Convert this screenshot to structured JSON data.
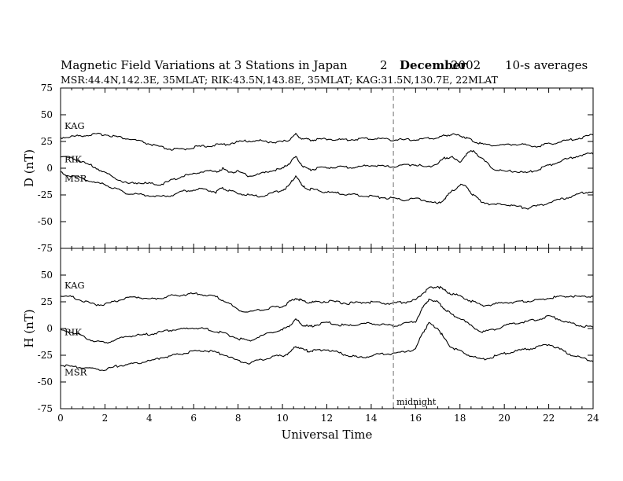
{
  "header": {
    "title": "Magnetic Field Variations at 3 Stations in Japan",
    "day": "2",
    "month": "December",
    "year": "2002",
    "averaging": "10-s averages",
    "subtitle": "MSR:44.4N,142.3E, 35MLAT;  RIK:43.5N,143.8E, 35MLAT;  KAG:31.5N,130.7E, 22MLAT"
  },
  "colors": {
    "trace": "#000000",
    "midline": "#999999",
    "frame": "#000000"
  },
  "chart_data": [
    {
      "type": "line",
      "ylabel": "D (nT)",
      "xlabel": "",
      "xlim": [
        0,
        24
      ],
      "ylim": [
        -75,
        75
      ],
      "yticks": [
        -75,
        -50,
        -25,
        0,
        25,
        50,
        75
      ],
      "xticks": [
        0,
        2,
        4,
        6,
        8,
        10,
        12,
        14,
        16,
        18,
        20,
        22,
        24
      ],
      "grid": false,
      "series": [
        {
          "name": "KAG",
          "x": [
            0,
            0.5,
            1,
            1.5,
            2,
            2.5,
            3,
            3.5,
            4,
            4.5,
            5,
            5.5,
            6,
            6.5,
            7,
            7.5,
            8,
            8.5,
            9,
            9.5,
            10,
            10.3,
            10.6,
            10.9,
            11.2,
            11.5,
            12,
            12.5,
            13,
            13.5,
            14,
            14.5,
            15,
            15.5,
            16,
            16.5,
            17,
            17.3,
            17.6,
            18,
            18.3,
            18.6,
            19,
            19.5,
            20,
            20.5,
            21,
            21.5,
            22,
            22.5,
            23,
            23.5,
            24
          ],
          "y": [
            28,
            29,
            30,
            31,
            31,
            29,
            27,
            25,
            22,
            19,
            17,
            17,
            19,
            20,
            21,
            22,
            24,
            25,
            25,
            24,
            24,
            26,
            31,
            27,
            26,
            26,
            27,
            26,
            26,
            27,
            27,
            27,
            26,
            26,
            26,
            27,
            28,
            30,
            31,
            30,
            28,
            25,
            22,
            21,
            21,
            22,
            21,
            20,
            22,
            24,
            26,
            28,
            31
          ]
        },
        {
          "name": "RIK",
          "x": [
            0,
            0.5,
            1,
            1.5,
            2,
            2.5,
            3,
            3.5,
            4,
            4.5,
            5,
            5.5,
            6,
            6.5,
            7,
            7.3,
            7.6,
            8,
            8.5,
            9,
            9.5,
            10,
            10.3,
            10.6,
            10.9,
            11.2,
            11.5,
            12,
            12.5,
            13,
            13.5,
            14,
            14.5,
            15,
            15.5,
            16,
            16.5,
            17,
            17.3,
            17.6,
            18,
            18.3,
            18.6,
            19,
            19.5,
            20,
            20.5,
            21,
            21.5,
            22,
            22.5,
            23,
            23.5,
            24
          ],
          "y": [
            10,
            9,
            5,
            1,
            -5,
            -10,
            -15,
            -14,
            -15,
            -16,
            -12,
            -8,
            -6,
            -3,
            -4,
            -1,
            -4,
            -4,
            -8,
            -6,
            -3,
            -1,
            4,
            10,
            2,
            -2,
            -1,
            0,
            1,
            0,
            1,
            2,
            1,
            1,
            2,
            3,
            0,
            4,
            9,
            10,
            5,
            13,
            16,
            8,
            -1,
            -4,
            -3,
            -5,
            -2,
            2,
            6,
            9,
            12,
            13
          ]
        },
        {
          "name": "MSR",
          "x": [
            0,
            0.5,
            1,
            1.5,
            2,
            2.5,
            3,
            3.5,
            4,
            4.5,
            5,
            5.5,
            6,
            6.5,
            7,
            7.3,
            7.6,
            8,
            8.5,
            9,
            9.5,
            10,
            10.3,
            10.6,
            10.9,
            11.2,
            11.5,
            12,
            12.5,
            13,
            13.5,
            14,
            14.5,
            15,
            15.5,
            16,
            16.5,
            17,
            17.3,
            17.6,
            18,
            18.3,
            18.6,
            19,
            19.5,
            20,
            20.5,
            21,
            21.5,
            22,
            22.5,
            23,
            23.5,
            24
          ],
          "y": [
            -5,
            -8,
            -10,
            -14,
            -16,
            -20,
            -24,
            -25,
            -26,
            -27,
            -26,
            -22,
            -21,
            -20,
            -23,
            -19,
            -22,
            -24,
            -26,
            -27,
            -24,
            -21,
            -17,
            -7,
            -18,
            -20,
            -21,
            -23,
            -24,
            -25,
            -26,
            -27,
            -28,
            -29,
            -30,
            -29,
            -31,
            -34,
            -29,
            -23,
            -16,
            -18,
            -26,
            -32,
            -35,
            -34,
            -36,
            -38,
            -36,
            -33,
            -30,
            -27,
            -24,
            -22
          ]
        }
      ]
    },
    {
      "type": "line",
      "ylabel": "H (nT)",
      "xlabel": "Universal Time",
      "xlim": [
        0,
        24
      ],
      "ylim": [
        -75,
        75
      ],
      "yticks": [
        -75,
        -50,
        -25,
        0,
        25,
        50,
        75
      ],
      "xticks": [
        0,
        2,
        4,
        6,
        8,
        10,
        12,
        14,
        16,
        18,
        20,
        22,
        24
      ],
      "grid": false,
      "annotation": {
        "x": 15,
        "label": "midnight"
      },
      "series": [
        {
          "name": "KAG",
          "x": [
            0,
            0.5,
            1,
            1.5,
            2,
            2.5,
            3,
            3.5,
            4,
            4.5,
            5,
            5.5,
            6,
            6.5,
            7,
            7.5,
            8,
            8.5,
            9,
            9.5,
            10,
            10.3,
            10.6,
            10.9,
            11.2,
            11.5,
            12,
            12.5,
            13,
            13.5,
            14,
            14.5,
            15,
            15.5,
            16,
            16.3,
            16.6,
            17,
            17.3,
            17.6,
            18,
            18.5,
            19,
            19.5,
            20,
            20.5,
            21,
            21.5,
            22,
            22.5,
            23,
            23.5,
            24
          ],
          "y": [
            30,
            29,
            25,
            22,
            22,
            25,
            28,
            29,
            27,
            28,
            30,
            31,
            32,
            31,
            29,
            24,
            17,
            15,
            17,
            19,
            20,
            24,
            28,
            25,
            24,
            24,
            25,
            24,
            23,
            24,
            24,
            23,
            23,
            24,
            26,
            32,
            37,
            39,
            35,
            32,
            30,
            25,
            21,
            22,
            24,
            24,
            25,
            26,
            28,
            29,
            30,
            29,
            30
          ]
        },
        {
          "name": "RIK",
          "x": [
            0,
            0.5,
            1,
            1.5,
            2,
            2.5,
            3,
            3.5,
            4,
            4.5,
            5,
            5.5,
            6,
            6.5,
            7,
            7.5,
            8,
            8.5,
            9,
            9.5,
            10,
            10.3,
            10.6,
            10.9,
            11.2,
            11.5,
            12,
            12.5,
            13,
            13.5,
            14,
            14.5,
            15,
            15.5,
            16,
            16.3,
            16.6,
            17,
            17.3,
            17.6,
            18,
            18.5,
            19,
            19.5,
            20,
            20.5,
            21,
            21.5,
            22,
            22.5,
            23,
            23.5,
            24
          ],
          "y": [
            -2,
            -4,
            -8,
            -12,
            -14,
            -11,
            -8,
            -7,
            -6,
            -4,
            -2,
            -1,
            0,
            -1,
            -3,
            -6,
            -10,
            -12,
            -8,
            -4,
            -2,
            2,
            8,
            3,
            1,
            3,
            5,
            3,
            2,
            4,
            4,
            3,
            2,
            4,
            6,
            18,
            27,
            24,
            18,
            13,
            9,
            2,
            -4,
            -2,
            2,
            4,
            6,
            8,
            11,
            8,
            4,
            2,
            1
          ]
        },
        {
          "name": "MSR",
          "x": [
            0,
            0.5,
            1,
            1.5,
            2,
            2.5,
            3,
            3.5,
            4,
            4.5,
            5,
            5.5,
            6,
            6.5,
            7,
            7.5,
            8,
            8.5,
            9,
            9.5,
            10,
            10.3,
            10.6,
            10.9,
            11.2,
            11.5,
            12,
            12.5,
            13,
            13.5,
            14,
            14.5,
            15,
            15.5,
            16,
            16.3,
            16.6,
            17,
            17.3,
            17.6,
            18,
            18.5,
            19,
            19.5,
            20,
            20.5,
            21,
            21.5,
            22,
            22.5,
            23,
            23.5,
            24
          ],
          "y": [
            -35,
            -36,
            -37,
            -38,
            -39,
            -36,
            -34,
            -33,
            -31,
            -28,
            -26,
            -24,
            -22,
            -21,
            -23,
            -26,
            -31,
            -33,
            -30,
            -27,
            -26,
            -24,
            -17,
            -20,
            -22,
            -21,
            -20,
            -23,
            -26,
            -28,
            -26,
            -24,
            -24,
            -22,
            -20,
            -5,
            4,
            0,
            -10,
            -18,
            -22,
            -26,
            -30,
            -27,
            -24,
            -22,
            -20,
            -18,
            -15,
            -20,
            -25,
            -28,
            -31
          ]
        }
      ]
    }
  ]
}
